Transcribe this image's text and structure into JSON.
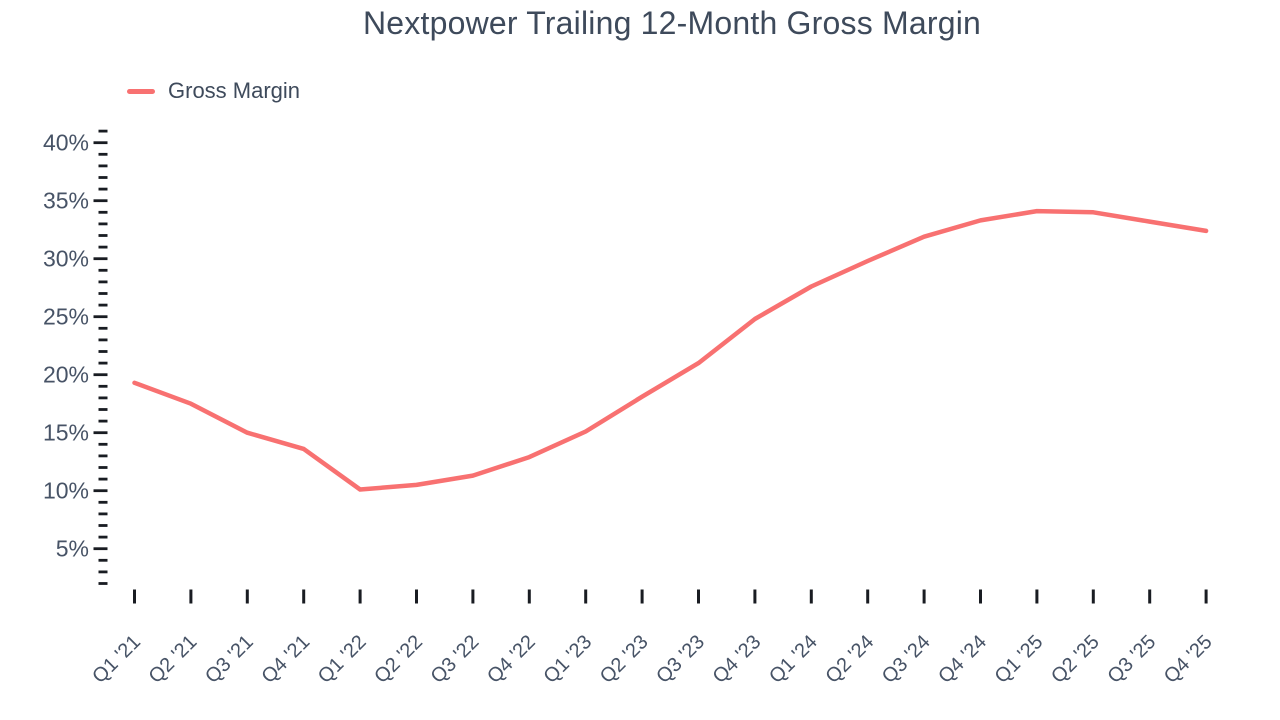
{
  "title": "Nextpower Trailing 12-Month Gross Margin",
  "legend": {
    "label": "Gross Margin",
    "swatch_color": "#f87171"
  },
  "colors": {
    "line": "#f87171",
    "title_text": "#3e4a5b",
    "axis_label_text": "#475366",
    "tick_mark": "#191c22",
    "background": "#ffffff"
  },
  "chart_data": {
    "type": "line",
    "title": "Nextpower Trailing 12-Month Gross Margin",
    "categories": [
      "Q1 '21",
      "Q2 '21",
      "Q3 '21",
      "Q4 '21",
      "Q1 '22",
      "Q2 '22",
      "Q3 '22",
      "Q4 '22",
      "Q1 '23",
      "Q2 '23",
      "Q3 '23",
      "Q4 '23",
      "Q1 '24",
      "Q2 '24",
      "Q3 '24",
      "Q4 '24",
      "Q1 '25",
      "Q2 '25",
      "Q3 '25",
      "Q4 '25"
    ],
    "series": [
      {
        "name": "Gross Margin",
        "color": "#f87171",
        "values": [
          19.3,
          17.5,
          15.0,
          13.6,
          10.1,
          10.5,
          11.3,
          12.9,
          15.1,
          18.1,
          21.0,
          24.8,
          27.6,
          29.8,
          31.9,
          33.3,
          34.1,
          34.0,
          33.2,
          32.4
        ]
      }
    ],
    "xlabel": "",
    "ylabel": "",
    "y_axis": {
      "unit": "%",
      "major_ticks": [
        40,
        35,
        30,
        25,
        20,
        15,
        10,
        5
      ],
      "major_tick_labels": [
        "40%",
        "35%",
        "30%",
        "25%",
        "20%",
        "15%",
        "10%",
        "5%"
      ],
      "minor_tick_step": 1,
      "axis_top_value": 41,
      "axis_bottom_value": 2
    },
    "ylim": [
      2,
      41
    ],
    "grid": "off",
    "markers": "off",
    "legend_position": "top-left"
  }
}
